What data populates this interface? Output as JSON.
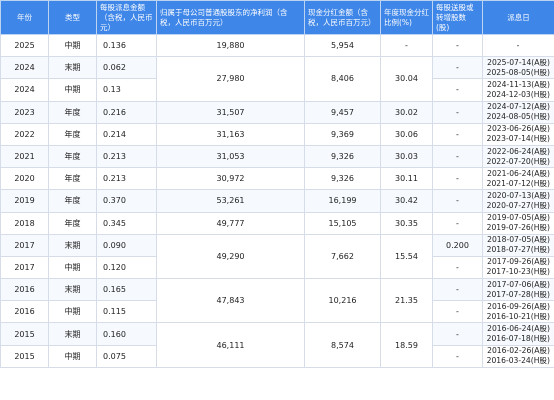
{
  "headers": {
    "year": "年份",
    "type": "类型",
    "dps": "每股派息金额（含税，人民币元）",
    "net_profit": "归属于母公司普通股股东的净利润（含税，人民币百万元）",
    "total_dividend": "现金分红金额（含税，人民币百万元）",
    "payout_ratio": "年度现金分红比例(%)",
    "bonus_shares": "每股送股或转增股数(股)",
    "pay_date": "派息日"
  },
  "rows": [
    {
      "year": "2025",
      "type": "中期",
      "dps": "0.136",
      "net_profit": "19,880",
      "total_dividend": "5,954",
      "payout_ratio": "-",
      "bonus_shares": "-",
      "pay_date": [
        "-"
      ]
    },
    {
      "year": "2024",
      "type": "末期",
      "dps": "0.062",
      "net_profit": "27,980",
      "total_dividend": "8,406",
      "payout_ratio": "30.04",
      "bonus_shares": "-",
      "pay_date": [
        "2025-07-14(A股)",
        "2025-08-05(H股)"
      ]
    },
    {
      "year": "2024",
      "type": "中期",
      "dps": "0.13",
      "net_profit": "",
      "total_dividend": "",
      "payout_ratio": "",
      "bonus_shares": "-",
      "pay_date": [
        "2024-11-13(A股)",
        "2024-12-03(H股)"
      ]
    },
    {
      "year": "2023",
      "type": "年度",
      "dps": "0.216",
      "net_profit": "31,507",
      "total_dividend": "9,457",
      "payout_ratio": "30.02",
      "bonus_shares": "-",
      "pay_date": [
        "2024-07-12(A股)",
        "2024-08-05(H股)"
      ]
    },
    {
      "year": "2022",
      "type": "年度",
      "dps": "0.214",
      "net_profit": "31,163",
      "total_dividend": "9,369",
      "payout_ratio": "30.06",
      "bonus_shares": "-",
      "pay_date": [
        "2023-06-26(A股)",
        "2023-07-14(H股)"
      ]
    },
    {
      "year": "2021",
      "type": "年度",
      "dps": "0.213",
      "net_profit": "31,053",
      "total_dividend": "9,326",
      "payout_ratio": "30.03",
      "bonus_shares": "-",
      "pay_date": [
        "2022-06-24(A股)",
        "2022-07-20(H股)"
      ]
    },
    {
      "year": "2020",
      "type": "年度",
      "dps": "0.213",
      "net_profit": "30,972",
      "total_dividend": "9,326",
      "payout_ratio": "30.11",
      "bonus_shares": "-",
      "pay_date": [
        "2021-06-24(A股)",
        "2021-07-12(H股)"
      ]
    },
    {
      "year": "2019",
      "type": "年度",
      "dps": "0.370",
      "net_profit": "53,261",
      "total_dividend": "16,199",
      "payout_ratio": "30.42",
      "bonus_shares": "-",
      "pay_date": [
        "2020-07-13(A股)",
        "2020-07-27(H股)"
      ]
    },
    {
      "year": "2018",
      "type": "年度",
      "dps": "0.345",
      "net_profit": "49,777",
      "total_dividend": "15,105",
      "payout_ratio": "30.35",
      "bonus_shares": "-",
      "pay_date": [
        "2019-07-05(A股)",
        "2019-07-26(H股)"
      ]
    },
    {
      "year": "2017",
      "type": "末期",
      "dps": "0.090",
      "net_profit": "49,290",
      "total_dividend": "7,662",
      "payout_ratio": "15.54",
      "bonus_shares": "0.200",
      "pay_date": [
        "2018-07-05(A股)",
        "2018-07-27(H股)"
      ]
    },
    {
      "year": "2017",
      "type": "中期",
      "dps": "0.120",
      "net_profit": "",
      "total_dividend": "",
      "payout_ratio": "",
      "bonus_shares": "-",
      "pay_date": [
        "2017-09-26(A股)",
        "2017-10-23(H股)"
      ]
    },
    {
      "year": "2016",
      "type": "末期",
      "dps": "0.165",
      "net_profit": "47,843",
      "total_dividend": "10,216",
      "payout_ratio": "21.35",
      "bonus_shares": "-",
      "pay_date": [
        "2017-07-06(A股)",
        "2017-07-28(H股)"
      ]
    },
    {
      "year": "2016",
      "type": "中期",
      "dps": "0.115",
      "net_profit": "",
      "total_dividend": "",
      "payout_ratio": "",
      "bonus_shares": "-",
      "pay_date": [
        "2016-09-26(A股)",
        "2016-10-21(H股)"
      ]
    },
    {
      "year": "2015",
      "type": "末期",
      "dps": "0.160",
      "net_profit": "46,111",
      "total_dividend": "8,574",
      "payout_ratio": "18.59",
      "bonus_shares": "-",
      "pay_date": [
        "2016-06-24(A股)",
        "2016-07-18(H股)"
      ]
    },
    {
      "year": "2015",
      "type": "中期",
      "dps": "0.075",
      "net_profit": "",
      "total_dividend": "",
      "payout_ratio": "",
      "bonus_shares": "-",
      "pay_date": [
        "2016-02-26(A股)",
        "2016-03-24(H股)"
      ]
    }
  ]
}
